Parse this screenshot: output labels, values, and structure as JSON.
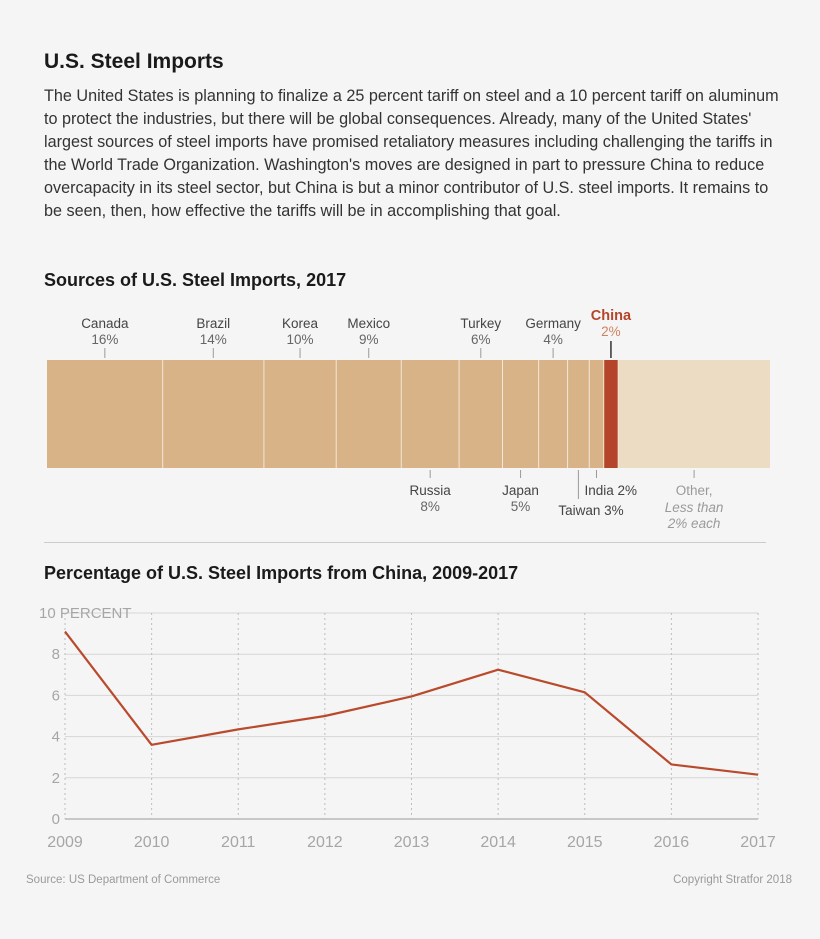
{
  "header": {
    "title": "U.S. Steel Imports",
    "intro": "The United States is planning to finalize a 25 percent tariff on steel and a 10 percent tariff on aluminum to protect the industries, but there will be global consequences. Already, many of the United States' largest sources of steel imports have promised retaliatory measures including challenging the tariffs in the World Trade Organization. Washington's moves are designed in part to pressure China to reduce overcapacity in its steel sector, but China is but a minor contributor of U.S. steel imports. It remains to be seen, then, how effective the tariffs will be in accomplishing that goal."
  },
  "footer": {
    "source": "Source: US Department of Commerce",
    "copyright": "Copyright Stratfor 2018"
  },
  "colors": {
    "segment": "#d8b388",
    "china": "#b5452a",
    "other": "#ecdcc3",
    "line": "#b94a2c"
  },
  "chart_data": [
    {
      "type": "bar",
      "title": "Sources of U.S. Steel Imports, 2017",
      "orientation": "stacked-horizontal",
      "segments": [
        {
          "name": "Canada",
          "label": "16%",
          "value": 16,
          "label_position": "top"
        },
        {
          "name": "Brazil",
          "label": "14%",
          "value": 14,
          "label_position": "top"
        },
        {
          "name": "Korea",
          "label": "10%",
          "value": 10,
          "label_position": "top"
        },
        {
          "name": "Mexico",
          "label": "9%",
          "value": 9,
          "label_position": "top"
        },
        {
          "name": "Russia",
          "label": "8%",
          "value": 8,
          "label_position": "bottom"
        },
        {
          "name": "Turkey",
          "label": "6%",
          "value": 6,
          "label_position": "top"
        },
        {
          "name": "Japan",
          "label": "5%",
          "value": 5,
          "label_position": "bottom"
        },
        {
          "name": "Germany",
          "label": "4%",
          "value": 4,
          "label_position": "top"
        },
        {
          "name": "Taiwan",
          "label": "3%",
          "value": 3,
          "label_position": "bottom"
        },
        {
          "name": "India",
          "label": "2%",
          "value": 2,
          "label_position": "bottom"
        },
        {
          "name": "China",
          "label": "2%",
          "value": 2,
          "label_position": "top",
          "highlight": true
        },
        {
          "name": "Other,",
          "label": "Less than 2% each",
          "value": 21,
          "label_position": "bottom",
          "muted": true
        }
      ]
    },
    {
      "type": "line",
      "title": "Percentage of U.S. Steel Imports from China, 2009-2017",
      "x": [
        "2009",
        "2010",
        "2011",
        "2012",
        "2013",
        "2014",
        "2015",
        "2016",
        "2017"
      ],
      "series": [
        {
          "values": [
            9.1,
            3.6,
            4.35,
            5.0,
            5.95,
            7.25,
            6.15,
            2.65,
            2.15
          ]
        }
      ],
      "ylim": [
        0,
        10
      ],
      "yticks": [
        "0",
        "2",
        "4",
        "6",
        "8",
        "10 PERCENT"
      ],
      "grid": true
    }
  ]
}
